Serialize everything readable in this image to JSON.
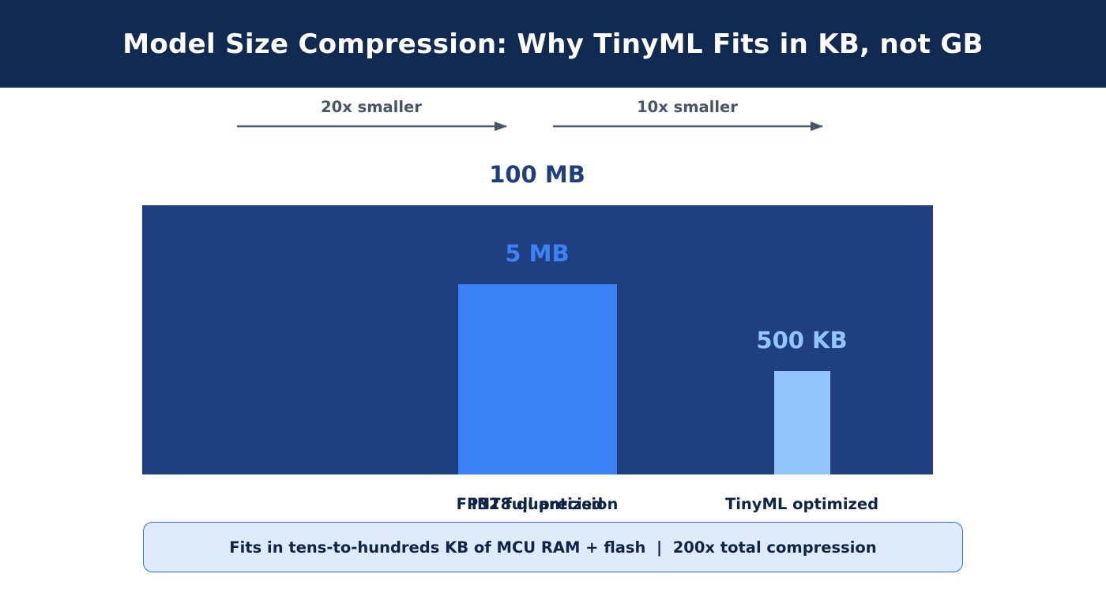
{
  "header": {
    "title": "Model Size Compression: Why TinyML Fits in KB, not GB"
  },
  "callout": {
    "text": "Fits in tens-to-hundreds KB of MCU RAM + flash  |  200x total compression"
  },
  "colors": {
    "header_bg": "#102a52",
    "fp32": "#1f3f80",
    "int8": "#3b82f6",
    "tinyml": "#93c5fd",
    "arrow": "#475569",
    "category_text": "#0f2547",
    "callout_bg": "#dfeafb",
    "callout_border": "#2f6fd6"
  },
  "chart_data": {
    "type": "bar",
    "categories": [
      "FP32 full precision",
      "INT8 quantized",
      "TinyML optimized"
    ],
    "values_mb": [
      100,
      5,
      0.5
    ],
    "value_labels": [
      "100 MB",
      "5 MB",
      "500 KB"
    ],
    "bar_colors": [
      "#1f3f80",
      "#3b82f6",
      "#93c5fd"
    ],
    "scale": "non-linear (illustrative)",
    "annotations": [
      {
        "text": "20x smaller",
        "from": "FP32 full precision",
        "to": "INT8 quantized"
      },
      {
        "text": "10x smaller",
        "from": "INT8 quantized",
        "to": "TinyML optimized"
      }
    ],
    "title": "",
    "xlabel": "",
    "ylabel": ""
  }
}
